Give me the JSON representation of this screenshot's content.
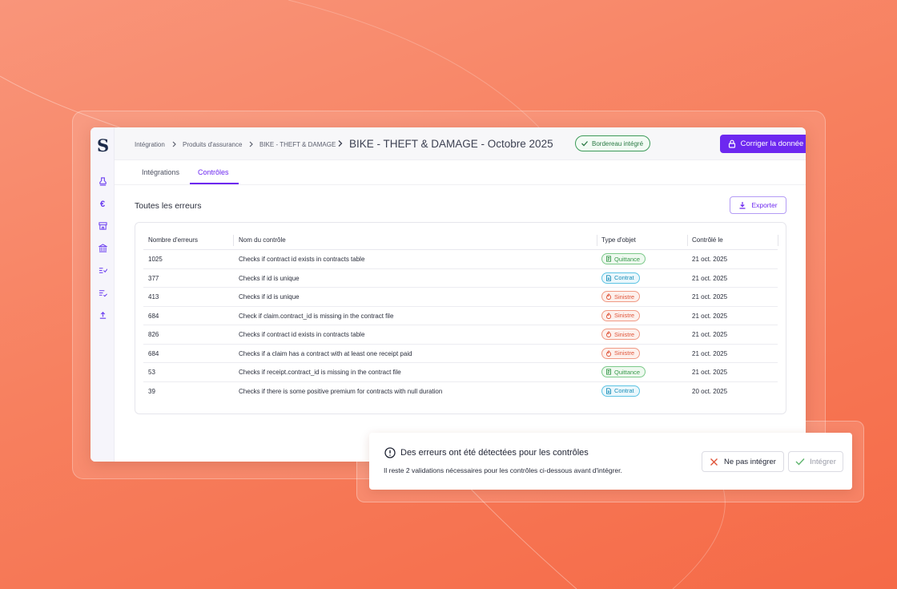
{
  "app": {
    "logo": "S"
  },
  "sidebar": {
    "icons": [
      "stamp-icon",
      "euro-icon",
      "store-icon",
      "bank-icon",
      "filter-check-icon",
      "list-check-icon",
      "upload-icon"
    ]
  },
  "breadcrumb": {
    "items": [
      "Intégration",
      "Produits d'assurance",
      "BIKE - THEFT & DAMAGE"
    ],
    "current": "BIKE - THEFT & DAMAGE - Octobre 2025"
  },
  "status": {
    "label": "Bordereau intégré",
    "color": "#2a7a44"
  },
  "header": {
    "fix_label": "Corriger la donnée",
    "accent": "#6d28f0"
  },
  "tabs": [
    {
      "label": "Intégrations",
      "active": false
    },
    {
      "label": "Contrôles",
      "active": true
    }
  ],
  "section": {
    "title": "Toutes les erreurs",
    "export_label": "Exporter"
  },
  "table": {
    "columns": [
      "Nombre d'erreurs",
      "Nom du contrôle",
      "Type d'objet",
      "Contrôlé le"
    ],
    "rows": [
      {
        "count": "1025",
        "name": "Checks if contract id exists in contracts table",
        "type": "Quittance",
        "date": "21 oct. 2025"
      },
      {
        "count": "377",
        "name": "Checks if id is unique",
        "type": "Contrat",
        "date": "21 oct. 2025"
      },
      {
        "count": "413",
        "name": "Checks if id is unique",
        "type": "Sinistre",
        "date": "21 oct. 2025"
      },
      {
        "count": "684",
        "name": "Check if claim.contract_id is missing in the contract file",
        "type": "Sinistre",
        "date": "21 oct. 2025"
      },
      {
        "count": "826",
        "name": "Checks if contract id exists in contracts table",
        "type": "Sinistre",
        "date": "21 oct. 2025"
      },
      {
        "count": "684",
        "name": "Checks if a claim has a contract with at least one receipt paid",
        "type": "Sinistre",
        "date": "21 oct. 2025"
      },
      {
        "count": "53",
        "name": "Checks if receipt.contract_id is missing in the contract file",
        "type": "Quittance",
        "date": "21 oct. 2025"
      },
      {
        "count": "39",
        "name": "Checks if there is some positive premium for contracts with null duration",
        "type": "Contrat",
        "date": "20 oct. 2025"
      }
    ],
    "type_styles": {
      "Quittance": {
        "color": "#3b9a4e",
        "bg": "#eef9ef",
        "border": "#7cc98a",
        "icon": "receipt-icon"
      },
      "Contrat": {
        "color": "#1a8fb8",
        "bg": "#eaf7fc",
        "border": "#5cc3e3",
        "icon": "document-icon"
      },
      "Sinistre": {
        "color": "#e0553a",
        "bg": "#fdf0ec",
        "border": "#f09a85",
        "icon": "fire-icon"
      }
    }
  },
  "toast": {
    "title": "Des erreurs ont été détectées pour les contrôles",
    "message": "Il reste 2 validations nécessaires pour les contrôles ci-dessous avant d'intégrer.",
    "reject_label": "Ne pas intégrer",
    "integrate_label": "Intégrer"
  }
}
